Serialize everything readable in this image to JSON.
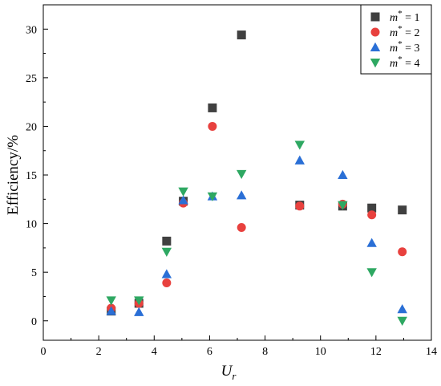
{
  "chart_data": {
    "type": "scatter",
    "xlabel": "U",
    "xlabel_sub": "r",
    "ylabel": "Efficiency/%",
    "xlim": [
      0,
      14
    ],
    "ylim": [
      -2,
      32.5
    ],
    "x_ticks": [
      "0",
      "2",
      "4",
      "6",
      "8",
      "10",
      "12",
      "14"
    ],
    "y_ticks": [
      "0",
      "5",
      "10",
      "15",
      "20",
      "25",
      "30"
    ],
    "legend_position": "top-right",
    "series": [
      {
        "name": "m* = 1",
        "legend_base": "m",
        "legend_sup": "*",
        "legend_rest": " = 1",
        "marker": "square",
        "color": "#404040",
        "points": [
          [
            2.45,
            1.0
          ],
          [
            3.45,
            1.8
          ],
          [
            4.45,
            8.2
          ],
          [
            5.05,
            12.3
          ],
          [
            6.1,
            21.9
          ],
          [
            7.15,
            29.4
          ],
          [
            9.25,
            11.9
          ],
          [
            10.8,
            11.8
          ],
          [
            11.85,
            11.6
          ],
          [
            12.95,
            11.4
          ]
        ]
      },
      {
        "name": "m* = 2",
        "legend_base": "m",
        "legend_sup": "*",
        "legend_rest": " = 2",
        "marker": "circle",
        "color": "#e8413e",
        "points": [
          [
            2.45,
            1.3
          ],
          [
            3.45,
            1.8
          ],
          [
            4.45,
            3.9
          ],
          [
            5.05,
            12.1
          ],
          [
            6.1,
            20.0
          ],
          [
            7.15,
            9.6
          ],
          [
            9.25,
            11.8
          ],
          [
            10.8,
            12.0
          ],
          [
            11.85,
            10.9
          ],
          [
            12.95,
            7.1
          ]
        ]
      },
      {
        "name": "m* = 3",
        "legend_base": "m",
        "legend_sup": "*",
        "legend_rest": " = 3",
        "marker": "triangle-up",
        "color": "#2a6fd6",
        "points": [
          [
            2.45,
            1.0
          ],
          [
            3.45,
            0.9
          ],
          [
            4.45,
            4.8
          ],
          [
            5.05,
            12.4
          ],
          [
            6.1,
            12.8
          ],
          [
            7.15,
            12.9
          ],
          [
            9.25,
            16.5
          ],
          [
            10.8,
            15.0
          ],
          [
            11.85,
            8.0
          ],
          [
            12.95,
            1.2
          ]
        ]
      },
      {
        "name": "m* = 4",
        "legend_base": "m",
        "legend_sup": "*",
        "legend_rest": " = 4",
        "marker": "triangle-down",
        "color": "#2ea862",
        "points": [
          [
            2.45,
            2.1
          ],
          [
            3.45,
            2.1
          ],
          [
            4.45,
            7.1
          ],
          [
            5.05,
            13.3
          ],
          [
            6.1,
            12.8
          ],
          [
            7.15,
            15.1
          ],
          [
            9.25,
            18.1
          ],
          [
            10.8,
            11.9
          ],
          [
            11.85,
            5.0
          ],
          [
            12.95,
            0.0
          ]
        ]
      }
    ]
  }
}
